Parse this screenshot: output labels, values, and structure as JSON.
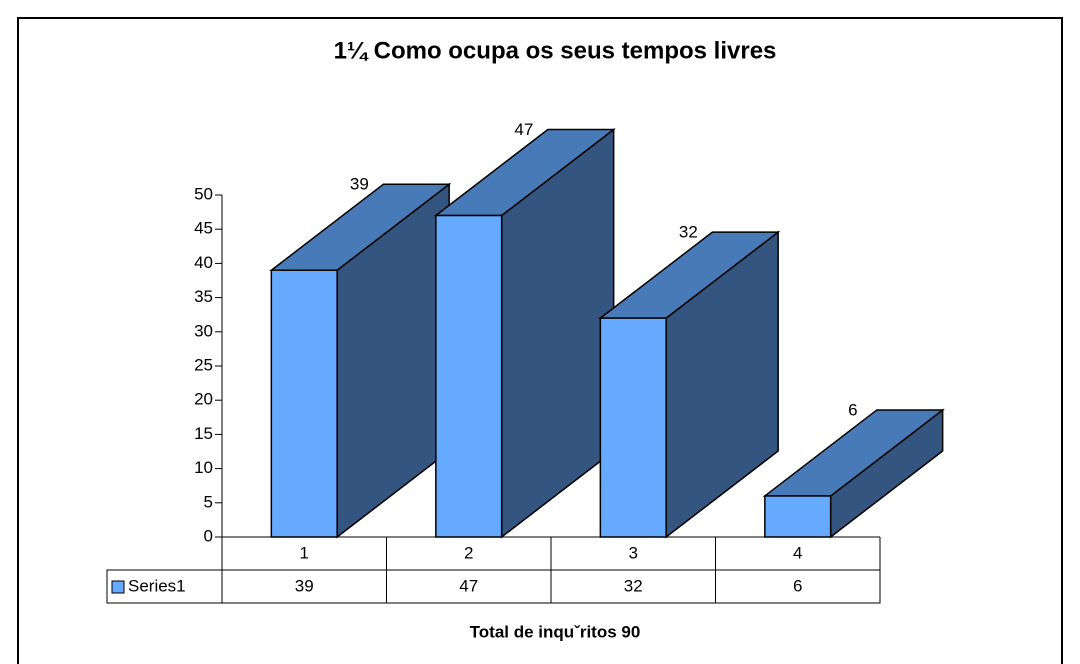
{
  "chart_data": {
    "type": "bar3d",
    "title": "1¼ Como ocupa os seus tempos livres",
    "categories": [
      "1",
      "2",
      "3",
      "4"
    ],
    "series": [
      {
        "name": "Series1",
        "color": "#66aaff",
        "values": [
          39,
          47,
          32,
          6
        ]
      }
    ],
    "ylim": [
      0,
      50
    ],
    "yticks": [
      0,
      5,
      10,
      15,
      20,
      25,
      30,
      35,
      40,
      45,
      50
    ],
    "footnote": "Total de inquˇritos 90"
  }
}
